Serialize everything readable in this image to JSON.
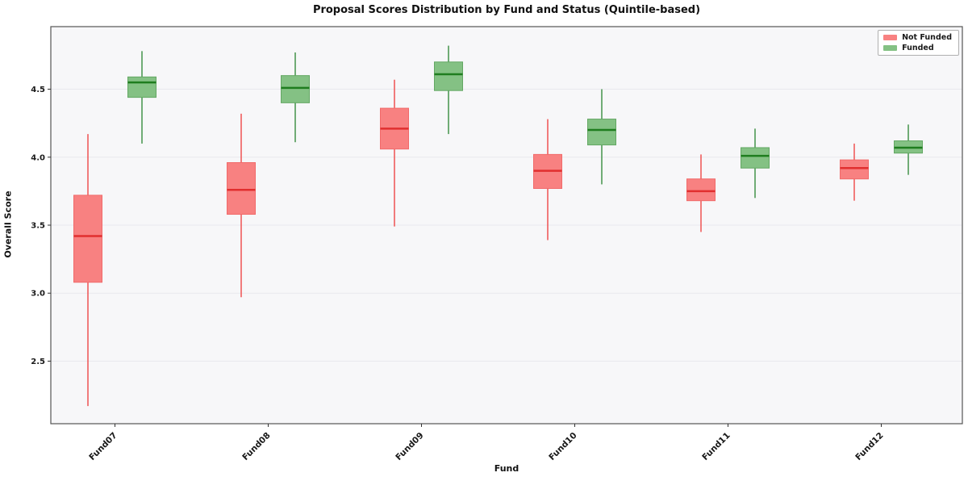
{
  "chart_data": {
    "type": "boxplot",
    "title": "Proposal Scores Distribution by Fund and Status (Quintile-based)",
    "xlabel": "Fund",
    "ylabel": "Overall Score",
    "categories": [
      "Fund07",
      "Fund08",
      "Fund09",
      "Fund10",
      "Fund11",
      "Fund12"
    ],
    "yticks": [
      "2.5",
      "3.0",
      "3.5",
      "4.0",
      "4.5"
    ],
    "ylim": [
      2.04,
      4.96
    ],
    "grid": "horizontal",
    "legend_position": "top-right",
    "plot_bg_color": "#f7f7f9",
    "grid_color": "#e9e9ee",
    "spine_color": "#555555",
    "tick_label_color": "#1a1a1a",
    "series": [
      {
        "name": "Not Funded",
        "fill_color": "#f88181",
        "edge_color": "#f16a6a",
        "median_color": "#e12f2f",
        "whisker_color": "#ef5252",
        "boxes": [
          {
            "whislo": 2.17,
            "q1": 3.08,
            "med": 3.42,
            "q3": 3.72,
            "whishi": 4.17
          },
          {
            "whislo": 2.97,
            "q1": 3.58,
            "med": 3.76,
            "q3": 3.96,
            "whishi": 4.32
          },
          {
            "whislo": 3.49,
            "q1": 4.06,
            "med": 4.21,
            "q3": 4.36,
            "whishi": 4.57
          },
          {
            "whislo": 3.39,
            "q1": 3.77,
            "med": 3.9,
            "q3": 4.02,
            "whishi": 4.28
          },
          {
            "whislo": 3.45,
            "q1": 3.68,
            "med": 3.75,
            "q3": 3.84,
            "whishi": 4.02
          },
          {
            "whislo": 3.68,
            "q1": 3.84,
            "med": 3.92,
            "q3": 3.98,
            "whishi": 4.1
          }
        ]
      },
      {
        "name": "Funded",
        "fill_color": "#84c184",
        "edge_color": "#63a763",
        "median_color": "#1f7d1f",
        "whisker_color": "#43934a",
        "boxes": [
          {
            "whislo": 4.1,
            "q1": 4.44,
            "med": 4.55,
            "q3": 4.59,
            "whishi": 4.78
          },
          {
            "whislo": 4.11,
            "q1": 4.4,
            "med": 4.51,
            "q3": 4.6,
            "whishi": 4.77
          },
          {
            "whislo": 4.17,
            "q1": 4.49,
            "med": 4.61,
            "q3": 4.7,
            "whishi": 4.82
          },
          {
            "whislo": 3.8,
            "q1": 4.09,
            "med": 4.2,
            "q3": 4.28,
            "whishi": 4.5
          },
          {
            "whislo": 3.7,
            "q1": 3.92,
            "med": 4.01,
            "q3": 4.07,
            "whishi": 4.21
          },
          {
            "whislo": 3.87,
            "q1": 4.03,
            "med": 4.07,
            "q3": 4.12,
            "whishi": 4.24
          }
        ]
      }
    ]
  }
}
